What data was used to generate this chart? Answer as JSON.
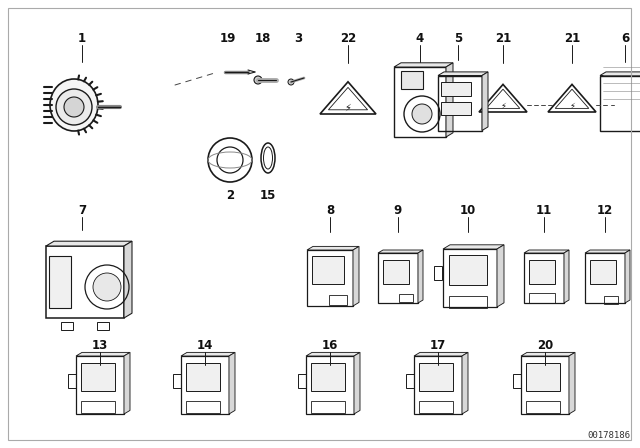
{
  "background_color": "#ffffff",
  "line_color": "#1a1a1a",
  "watermark": "00178186",
  "fig_w": 6.4,
  "fig_h": 4.48,
  "dpi": 100
}
